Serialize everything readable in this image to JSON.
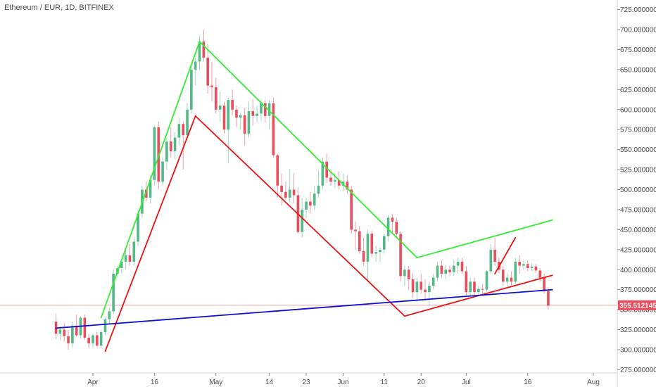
{
  "chart_data": {
    "type": "candlestick",
    "title": "Ethereum / EUR, 1D, BITFINEX",
    "colors": {
      "up": "#53b987",
      "down": "#eb4d5c",
      "green_line": "#33ee33",
      "red_line": "#ee1111",
      "blue_line": "#1010cc",
      "last_line": "#f2a0a8"
    },
    "y_ticks": [
      "275.00000000",
      "300.00000000",
      "325.00000000",
      "350.00000000",
      "375.00000000",
      "400.00000000",
      "425.00000000",
      "450.00000000",
      "475.00000000",
      "500.00000000",
      "525.00000000",
      "550.00000000",
      "575.00000000",
      "600.00000000",
      "625.00000000",
      "650.00000000",
      "675.00000000",
      "700.00000000",
      "725.00000000"
    ],
    "x_ticks": [
      {
        "label": "Apr",
        "day": 31
      },
      {
        "label": "16",
        "day": 46
      },
      {
        "label": "May",
        "day": 61
      },
      {
        "label": "14",
        "day": 74
      },
      {
        "label": "23",
        "day": 83
      },
      {
        "label": "Jun",
        "day": 92
      },
      {
        "label": "11",
        "day": 102
      },
      {
        "label": "20",
        "day": 111
      },
      {
        "label": "Jul",
        "day": 122
      },
      {
        "label": "16",
        "day": 137
      },
      {
        "label": "Aug",
        "day": 153
      }
    ],
    "last_price": "355.51214523",
    "ylim": [
      265,
      735
    ],
    "ohlc": [
      {
        "d": 22,
        "o": 335,
        "h": 345,
        "l": 313,
        "c": 320
      },
      {
        "d": 23,
        "o": 320,
        "h": 330,
        "l": 312,
        "c": 325
      },
      {
        "d": 24,
        "o": 325,
        "h": 333,
        "l": 310,
        "c": 317
      },
      {
        "d": 25,
        "o": 317,
        "h": 325,
        "l": 300,
        "c": 308
      },
      {
        "d": 26,
        "o": 308,
        "h": 335,
        "l": 303,
        "c": 330
      },
      {
        "d": 27,
        "o": 330,
        "h": 344,
        "l": 316,
        "c": 318
      },
      {
        "d": 28,
        "o": 318,
        "h": 342,
        "l": 314,
        "c": 340
      },
      {
        "d": 29,
        "o": 340,
        "h": 344,
        "l": 312,
        "c": 315
      },
      {
        "d": 30,
        "o": 315,
        "h": 320,
        "l": 302,
        "c": 308
      },
      {
        "d": 31,
        "o": 308,
        "h": 320,
        "l": 303,
        "c": 318
      },
      {
        "d": 32,
        "o": 318,
        "h": 322,
        "l": 303,
        "c": 305
      },
      {
        "d": 33,
        "o": 305,
        "h": 325,
        "l": 302,
        "c": 322
      },
      {
        "d": 34,
        "o": 322,
        "h": 340,
        "l": 318,
        "c": 338
      },
      {
        "d": 35,
        "o": 338,
        "h": 352,
        "l": 332,
        "c": 348
      },
      {
        "d": 36,
        "o": 348,
        "h": 400,
        "l": 345,
        "c": 395
      },
      {
        "d": 37,
        "o": 395,
        "h": 405,
        "l": 390,
        "c": 402
      },
      {
        "d": 38,
        "o": 402,
        "h": 415,
        "l": 395,
        "c": 410
      },
      {
        "d": 39,
        "o": 410,
        "h": 428,
        "l": 400,
        "c": 418
      },
      {
        "d": 40,
        "o": 418,
        "h": 432,
        "l": 405,
        "c": 410
      },
      {
        "d": 41,
        "o": 410,
        "h": 440,
        "l": 405,
        "c": 435
      },
      {
        "d": 42,
        "o": 435,
        "h": 475,
        "l": 430,
        "c": 470
      },
      {
        "d": 43,
        "o": 470,
        "h": 505,
        "l": 465,
        "c": 500
      },
      {
        "d": 44,
        "o": 500,
        "h": 510,
        "l": 485,
        "c": 490
      },
      {
        "d": 45,
        "o": 490,
        "h": 518,
        "l": 483,
        "c": 512
      },
      {
        "d": 46,
        "o": 512,
        "h": 580,
        "l": 505,
        "c": 578
      },
      {
        "d": 47,
        "o": 578,
        "h": 585,
        "l": 500,
        "c": 510
      },
      {
        "d": 48,
        "o": 510,
        "h": 540,
        "l": 505,
        "c": 535
      },
      {
        "d": 49,
        "o": 535,
        "h": 565,
        "l": 525,
        "c": 560
      },
      {
        "d": 50,
        "o": 560,
        "h": 578,
        "l": 540,
        "c": 548
      },
      {
        "d": 51,
        "o": 548,
        "h": 572,
        "l": 538,
        "c": 565
      },
      {
        "d": 52,
        "o": 565,
        "h": 590,
        "l": 555,
        "c": 582
      },
      {
        "d": 53,
        "o": 582,
        "h": 585,
        "l": 525,
        "c": 568
      },
      {
        "d": 54,
        "o": 568,
        "h": 608,
        "l": 562,
        "c": 600
      },
      {
        "d": 55,
        "o": 600,
        "h": 655,
        "l": 595,
        "c": 650
      },
      {
        "d": 56,
        "o": 650,
        "h": 665,
        "l": 630,
        "c": 660
      },
      {
        "d": 57,
        "o": 660,
        "h": 692,
        "l": 650,
        "c": 685
      },
      {
        "d": 58,
        "o": 685,
        "h": 700,
        "l": 660,
        "c": 665
      },
      {
        "d": 59,
        "o": 665,
        "h": 682,
        "l": 620,
        "c": 630
      },
      {
        "d": 60,
        "o": 630,
        "h": 660,
        "l": 610,
        "c": 628
      },
      {
        "d": 61,
        "o": 628,
        "h": 640,
        "l": 595,
        "c": 600
      },
      {
        "d": 62,
        "o": 600,
        "h": 622,
        "l": 585,
        "c": 605
      },
      {
        "d": 63,
        "o": 605,
        "h": 610,
        "l": 570,
        "c": 575
      },
      {
        "d": 64,
        "o": 575,
        "h": 615,
        "l": 533,
        "c": 612
      },
      {
        "d": 65,
        "o": 612,
        "h": 625,
        "l": 593,
        "c": 600
      },
      {
        "d": 66,
        "o": 600,
        "h": 605,
        "l": 578,
        "c": 590
      },
      {
        "d": 67,
        "o": 590,
        "h": 597,
        "l": 575,
        "c": 593
      },
      {
        "d": 68,
        "o": 593,
        "h": 602,
        "l": 555,
        "c": 570
      },
      {
        "d": 69,
        "o": 570,
        "h": 610,
        "l": 565,
        "c": 598
      },
      {
        "d": 70,
        "o": 598,
        "h": 613,
        "l": 580,
        "c": 592
      },
      {
        "d": 71,
        "o": 592,
        "h": 605,
        "l": 585,
        "c": 595
      },
      {
        "d": 72,
        "o": 595,
        "h": 612,
        "l": 585,
        "c": 608
      },
      {
        "d": 73,
        "o": 608,
        "h": 612,
        "l": 584,
        "c": 592
      },
      {
        "d": 74,
        "o": 592,
        "h": 612,
        "l": 575,
        "c": 608
      },
      {
        "d": 75,
        "o": 608,
        "h": 615,
        "l": 540,
        "c": 543
      },
      {
        "d": 76,
        "o": 543,
        "h": 545,
        "l": 490,
        "c": 505
      },
      {
        "d": 77,
        "o": 505,
        "h": 520,
        "l": 480,
        "c": 497
      },
      {
        "d": 78,
        "o": 497,
        "h": 510,
        "l": 487,
        "c": 490
      },
      {
        "d": 79,
        "o": 490,
        "h": 526,
        "l": 484,
        "c": 500
      },
      {
        "d": 80,
        "o": 500,
        "h": 520,
        "l": 483,
        "c": 493
      },
      {
        "d": 81,
        "o": 493,
        "h": 503,
        "l": 445,
        "c": 447
      },
      {
        "d": 82,
        "o": 447,
        "h": 490,
        "l": 440,
        "c": 475
      },
      {
        "d": 83,
        "o": 475,
        "h": 490,
        "l": 465,
        "c": 485
      },
      {
        "d": 84,
        "o": 485,
        "h": 497,
        "l": 470,
        "c": 480
      },
      {
        "d": 85,
        "o": 480,
        "h": 505,
        "l": 475,
        "c": 495
      },
      {
        "d": 86,
        "o": 495,
        "h": 525,
        "l": 490,
        "c": 505
      },
      {
        "d": 87,
        "o": 505,
        "h": 540,
        "l": 500,
        "c": 535
      },
      {
        "d": 88,
        "o": 535,
        "h": 545,
        "l": 508,
        "c": 515
      },
      {
        "d": 89,
        "o": 515,
        "h": 525,
        "l": 505,
        "c": 510
      },
      {
        "d": 90,
        "o": 510,
        "h": 520,
        "l": 502,
        "c": 512
      },
      {
        "d": 91,
        "o": 512,
        "h": 523,
        "l": 500,
        "c": 505
      },
      {
        "d": 92,
        "o": 505,
        "h": 520,
        "l": 498,
        "c": 510
      },
      {
        "d": 93,
        "o": 510,
        "h": 518,
        "l": 495,
        "c": 500
      },
      {
        "d": 94,
        "o": 500,
        "h": 505,
        "l": 445,
        "c": 450
      },
      {
        "d": 95,
        "o": 450,
        "h": 460,
        "l": 425,
        "c": 448
      },
      {
        "d": 96,
        "o": 448,
        "h": 455,
        "l": 420,
        "c": 423
      },
      {
        "d": 97,
        "o": 423,
        "h": 440,
        "l": 405,
        "c": 410
      },
      {
        "d": 98,
        "o": 410,
        "h": 450,
        "l": 385,
        "c": 445
      },
      {
        "d": 99,
        "o": 445,
        "h": 449,
        "l": 415,
        "c": 420
      },
      {
        "d": 100,
        "o": 420,
        "h": 430,
        "l": 410,
        "c": 422
      },
      {
        "d": 101,
        "o": 422,
        "h": 428,
        "l": 410,
        "c": 425
      },
      {
        "d": 102,
        "o": 425,
        "h": 445,
        "l": 420,
        "c": 442
      },
      {
        "d": 103,
        "o": 442,
        "h": 468,
        "l": 435,
        "c": 465
      },
      {
        "d": 104,
        "o": 465,
        "h": 470,
        "l": 445,
        "c": 460
      },
      {
        "d": 105,
        "o": 460,
        "h": 465,
        "l": 440,
        "c": 445
      },
      {
        "d": 106,
        "o": 445,
        "h": 448,
        "l": 385,
        "c": 392
      },
      {
        "d": 107,
        "o": 392,
        "h": 405,
        "l": 380,
        "c": 400
      },
      {
        "d": 108,
        "o": 400,
        "h": 405,
        "l": 375,
        "c": 388
      },
      {
        "d": 109,
        "o": 388,
        "h": 395,
        "l": 365,
        "c": 372
      },
      {
        "d": 110,
        "o": 372,
        "h": 390,
        "l": 360,
        "c": 385
      },
      {
        "d": 111,
        "o": 385,
        "h": 395,
        "l": 370,
        "c": 375
      },
      {
        "d": 112,
        "o": 375,
        "h": 388,
        "l": 362,
        "c": 372
      },
      {
        "d": 113,
        "o": 372,
        "h": 385,
        "l": 355,
        "c": 380
      },
      {
        "d": 114,
        "o": 380,
        "h": 395,
        "l": 375,
        "c": 390
      },
      {
        "d": 115,
        "o": 390,
        "h": 410,
        "l": 385,
        "c": 405
      },
      {
        "d": 116,
        "o": 405,
        "h": 412,
        "l": 390,
        "c": 395
      },
      {
        "d": 117,
        "o": 395,
        "h": 406,
        "l": 388,
        "c": 400
      },
      {
        "d": 118,
        "o": 400,
        "h": 405,
        "l": 392,
        "c": 397
      },
      {
        "d": 119,
        "o": 397,
        "h": 412,
        "l": 392,
        "c": 405
      },
      {
        "d": 120,
        "o": 405,
        "h": 415,
        "l": 395,
        "c": 410
      },
      {
        "d": 121,
        "o": 410,
        "h": 415,
        "l": 395,
        "c": 398
      },
      {
        "d": 122,
        "o": 398,
        "h": 405,
        "l": 368,
        "c": 372
      },
      {
        "d": 123,
        "o": 372,
        "h": 390,
        "l": 366,
        "c": 385
      },
      {
        "d": 124,
        "o": 385,
        "h": 390,
        "l": 368,
        "c": 372
      },
      {
        "d": 125,
        "o": 372,
        "h": 380,
        "l": 368,
        "c": 376
      },
      {
        "d": 126,
        "o": 376,
        "h": 382,
        "l": 370,
        "c": 375
      },
      {
        "d": 127,
        "o": 375,
        "h": 400,
        "l": 372,
        "c": 398
      },
      {
        "d": 128,
        "o": 398,
        "h": 432,
        "l": 395,
        "c": 425
      },
      {
        "d": 129,
        "o": 425,
        "h": 440,
        "l": 405,
        "c": 410
      },
      {
        "d": 130,
        "o": 410,
        "h": 415,
        "l": 395,
        "c": 400
      },
      {
        "d": 131,
        "o": 400,
        "h": 405,
        "l": 380,
        "c": 385
      },
      {
        "d": 132,
        "o": 385,
        "h": 395,
        "l": 378,
        "c": 390
      },
      {
        "d": 133,
        "o": 390,
        "h": 398,
        "l": 378,
        "c": 385
      },
      {
        "d": 134,
        "o": 385,
        "h": 415,
        "l": 382,
        "c": 410
      },
      {
        "d": 135,
        "o": 410,
        "h": 418,
        "l": 395,
        "c": 405
      },
      {
        "d": 136,
        "o": 405,
        "h": 412,
        "l": 400,
        "c": 407
      },
      {
        "d": 137,
        "o": 407,
        "h": 412,
        "l": 398,
        "c": 402
      },
      {
        "d": 138,
        "o": 402,
        "h": 408,
        "l": 398,
        "c": 404
      },
      {
        "d": 139,
        "o": 404,
        "h": 407,
        "l": 396,
        "c": 399
      },
      {
        "d": 140,
        "o": 399,
        "h": 402,
        "l": 385,
        "c": 390
      },
      {
        "d": 141,
        "o": 390,
        "h": 395,
        "l": 370,
        "c": 373
      },
      {
        "d": 142,
        "o": 373,
        "h": 378,
        "l": 350,
        "c": 355
      }
    ],
    "trendlines": [
      {
        "name": "green-upper-1",
        "color": "green_line",
        "x1": 33,
        "y1": 340,
        "x2": 57,
        "y2": 685
      },
      {
        "name": "green-upper-2",
        "color": "green_line",
        "x1": 57,
        "y1": 685,
        "x2": 110,
        "y2": 415
      },
      {
        "name": "green-upper-3",
        "color": "green_line",
        "x1": 110,
        "y1": 415,
        "x2": 143,
        "y2": 462
      },
      {
        "name": "red-lower-1",
        "color": "red_line",
        "x1": 34,
        "y1": 298,
        "x2": 56,
        "y2": 592
      },
      {
        "name": "red-lower-2",
        "color": "red_line",
        "x1": 56,
        "y1": 592,
        "x2": 107,
        "y2": 342
      },
      {
        "name": "red-lower-3",
        "color": "red_line",
        "x1": 107,
        "y1": 342,
        "x2": 143,
        "y2": 393
      },
      {
        "name": "red-spike",
        "color": "red_line",
        "x1": 129,
        "y1": 395,
        "x2": 134,
        "y2": 440
      },
      {
        "name": "blue-support",
        "color": "blue_line",
        "x1": 22,
        "y1": 327,
        "x2": 143,
        "y2": 375
      }
    ]
  }
}
